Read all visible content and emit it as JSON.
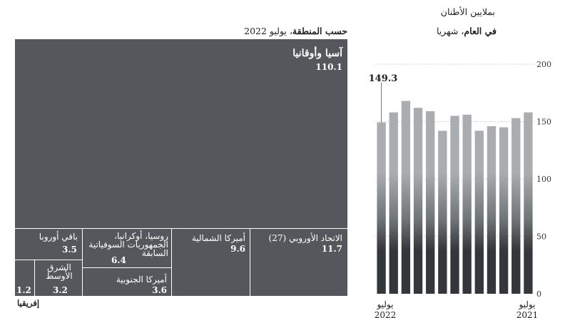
{
  "units_label": "بملايين الأطنان",
  "monthly": {
    "subtitle_bold": "في العام",
    "subtitle_rest": "، شهريا"
  },
  "treemap": {
    "title_bold": "حسب المنطقة",
    "title_rest": "، يوليو 2022",
    "color": "#55575d",
    "divider_color": "#ffffff"
  },
  "chart_data": [
    {
      "type": "treemap",
      "items": [
        {
          "label": "آسيا وأوقانيا",
          "value": 110.1
        },
        {
          "label": "الاتحاد الأوروبي (27)",
          "value": 11.7
        },
        {
          "label": "أميركا الشمالية",
          "value": 9.6
        },
        {
          "label": "روسيا، أوكرانيا، الجمهوريات السوفياتية السابقة",
          "value": 6.4
        },
        {
          "label": "أميركا الجنوبية",
          "value": 3.6
        },
        {
          "label": "باقي أوروبا",
          "value": 3.5
        },
        {
          "label": "الشرق الأوسط",
          "value": 3.2
        },
        {
          "label": "إفريقيا",
          "value": 1.2
        }
      ]
    },
    {
      "type": "bar",
      "categories": [
        "يوليو 2022",
        "",
        "",
        "",
        "",
        "",
        "",
        "",
        "",
        "",
        "",
        "",
        "يوليو 2021"
      ],
      "values": [
        149.3,
        158,
        168,
        162,
        159,
        142,
        155,
        156,
        142,
        146,
        145,
        153,
        158
      ],
      "highlight": {
        "index": 0,
        "label": "149.3"
      },
      "ylim": [
        0,
        200
      ],
      "yticks": [
        0,
        50,
        100,
        150,
        200
      ],
      "grid": true,
      "xlabels": {
        "first_word": "يوليو",
        "first_year": "2022",
        "last_word": "يوليو",
        "last_year": "2021"
      },
      "colors": {
        "bar_top": "#a9adb0",
        "bar_mid": "#6f7477",
        "bar_bottom": "#33363a",
        "grid": "#aaaaaa"
      }
    }
  ]
}
